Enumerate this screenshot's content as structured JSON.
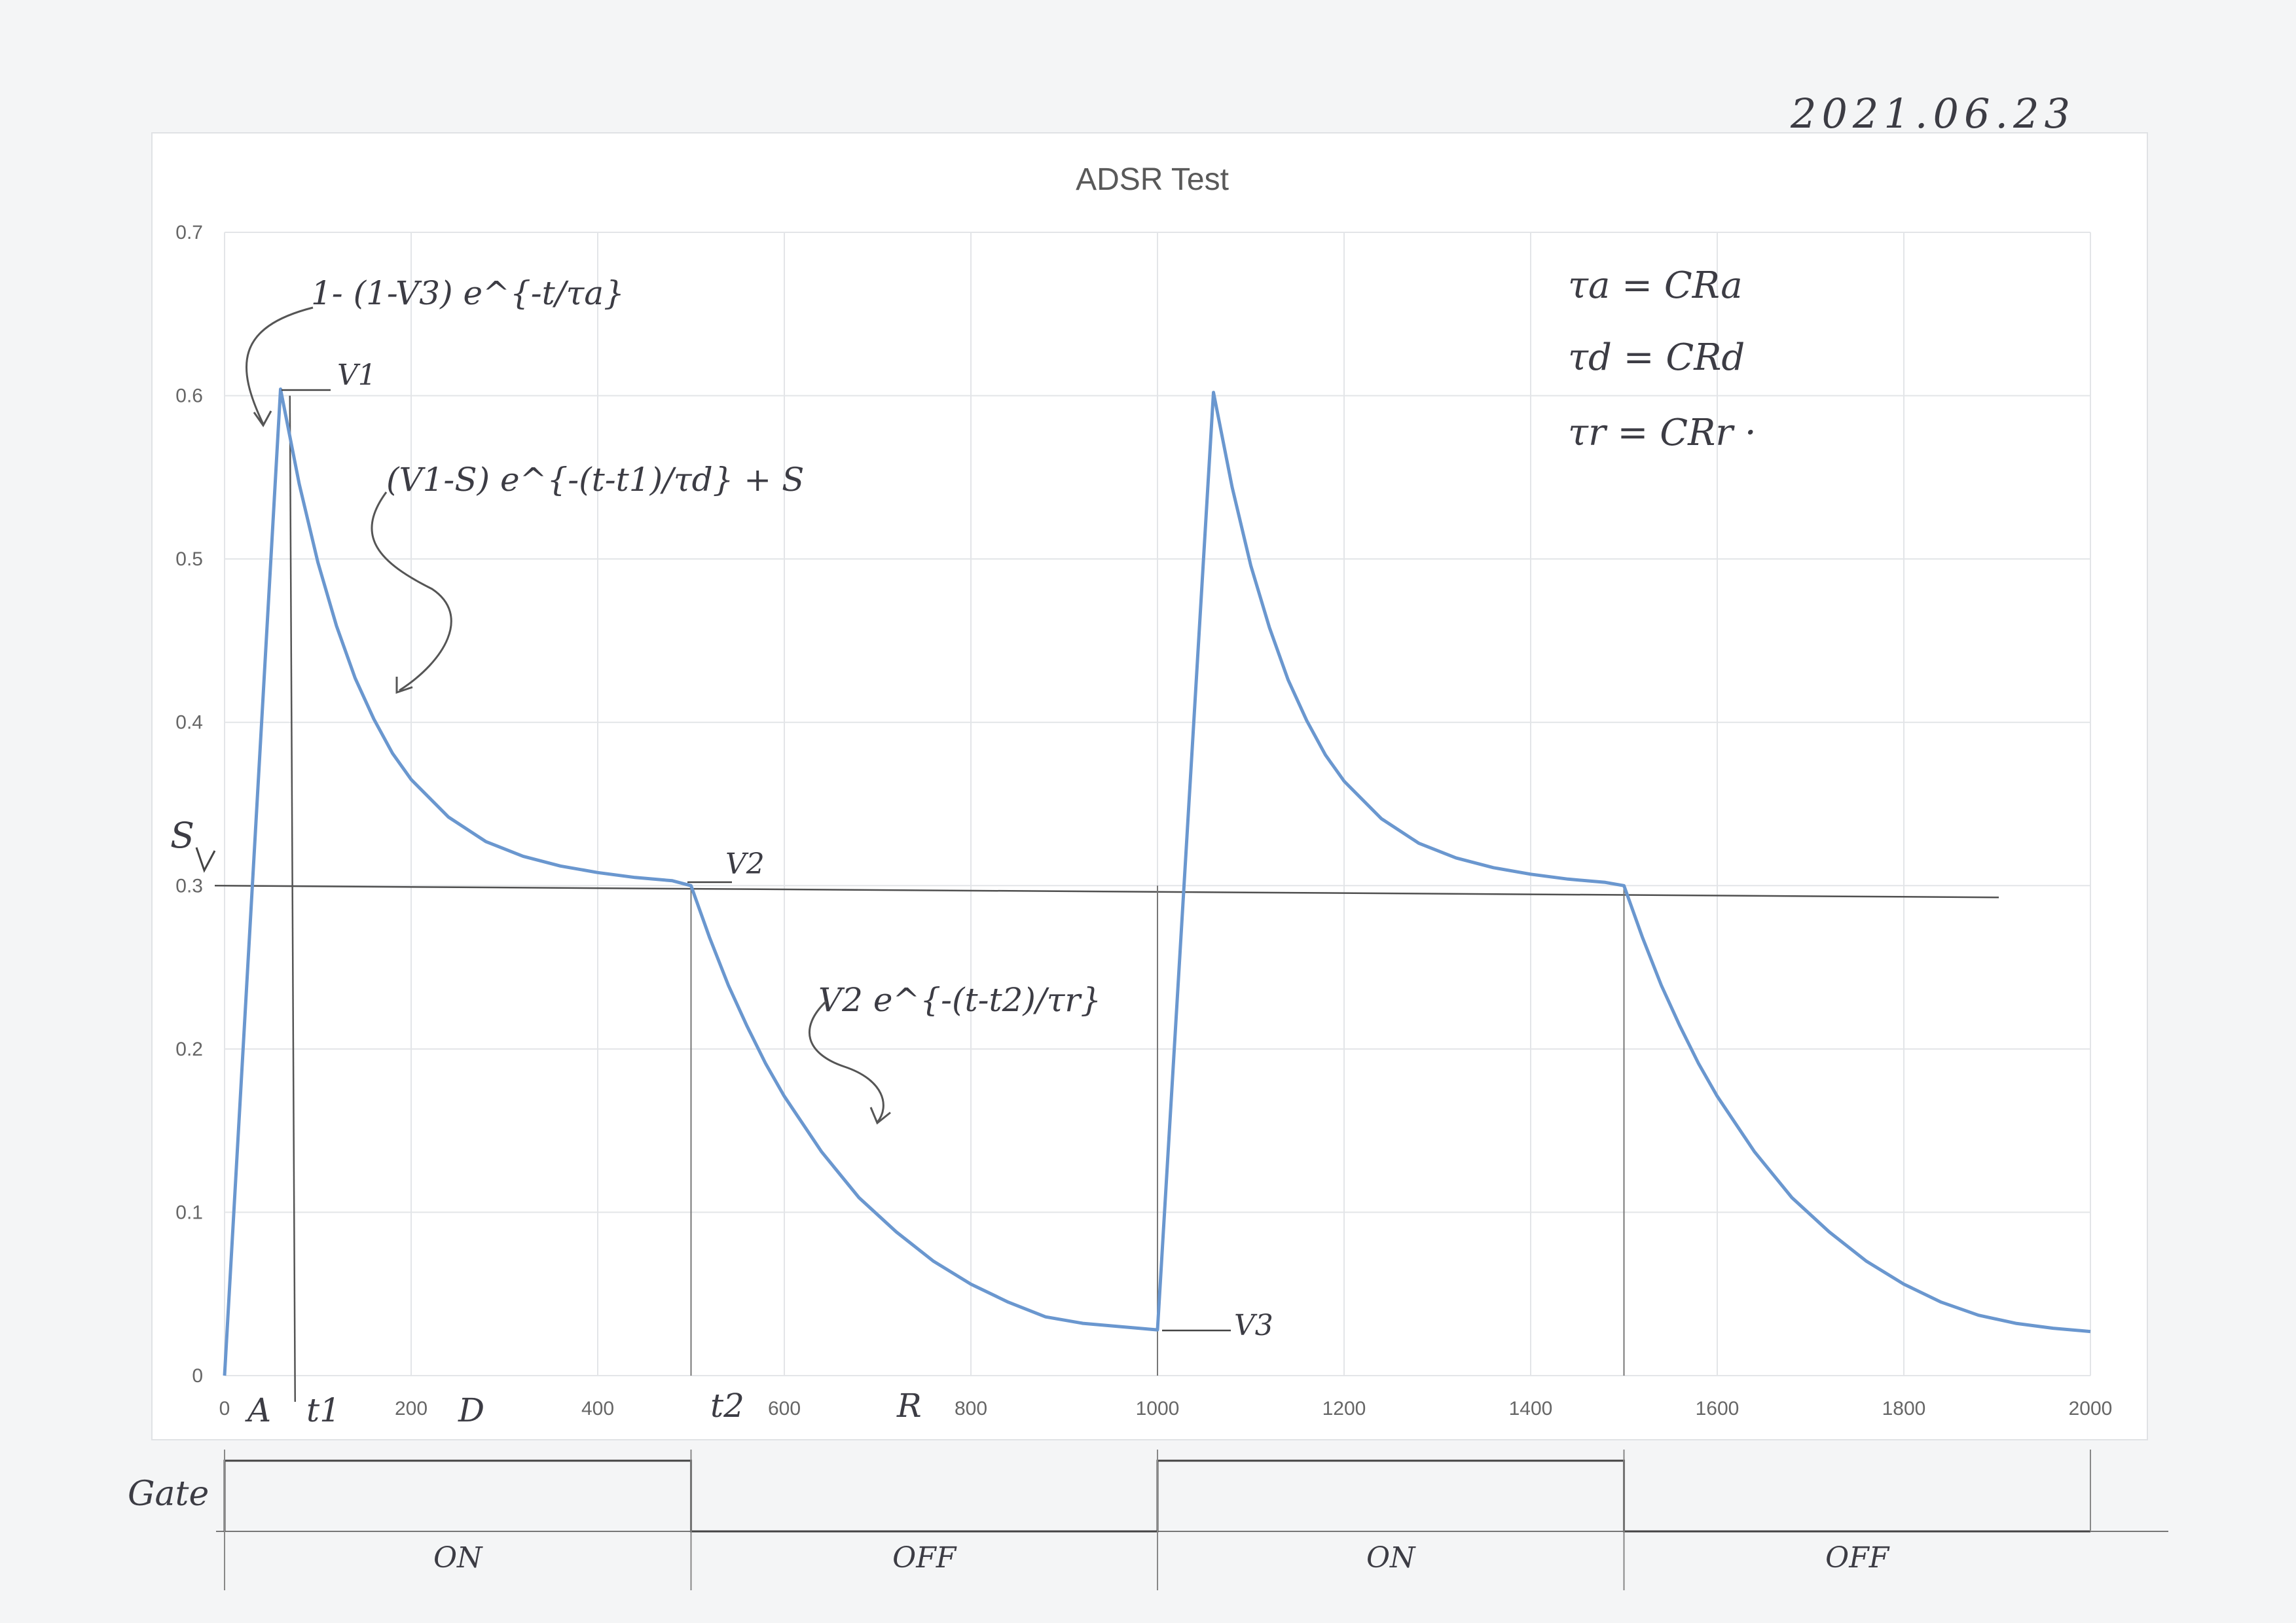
{
  "date_note": "2021.06.23",
  "chart_data": {
    "type": "line",
    "title": "ADSR Test",
    "xlim": [
      0,
      2000
    ],
    "ylim": [
      0,
      0.7
    ],
    "xticks": [
      "0",
      "200",
      "400",
      "600",
      "800",
      "1000",
      "1200",
      "1400",
      "1600",
      "1800",
      "2000"
    ],
    "yticks": [
      "0",
      "0.1",
      "0.2",
      "0.3",
      "0.4",
      "0.5",
      "0.6",
      "0.7"
    ],
    "grid": true,
    "series_color": "#6a97cf",
    "series": [
      {
        "x": [
          0,
          60,
          80,
          100,
          120,
          140,
          160,
          180,
          200,
          240,
          280,
          320,
          360,
          400,
          440,
          480,
          500,
          520,
          540,
          560,
          580,
          600,
          640,
          680,
          720,
          760,
          800,
          840,
          880,
          920,
          960,
          1000,
          1060,
          1080,
          1100,
          1120,
          1140,
          1160,
          1180,
          1200,
          1240,
          1280,
          1320,
          1360,
          1400,
          1440,
          1480,
          1500,
          1520,
          1540,
          1560,
          1580,
          1600,
          1640,
          1680,
          1720,
          1760,
          1800,
          1840,
          1880,
          1920,
          1960,
          2000
        ],
        "y": [
          0,
          0.604,
          0.546,
          0.498,
          0.459,
          0.427,
          0.402,
          0.381,
          0.365,
          0.342,
          0.327,
          0.318,
          0.312,
          0.308,
          0.305,
          0.303,
          0.3,
          0.268,
          0.239,
          0.214,
          0.191,
          0.171,
          0.137,
          0.109,
          0.088,
          0.07,
          0.056,
          0.045,
          0.036,
          0.032,
          0.03,
          0.028,
          0.602,
          0.544,
          0.496,
          0.458,
          0.426,
          0.401,
          0.38,
          0.364,
          0.341,
          0.326,
          0.317,
          0.311,
          0.307,
          0.304,
          0.302,
          0.3,
          0.268,
          0.239,
          0.214,
          0.191,
          0.171,
          0.137,
          0.109,
          0.088,
          0.07,
          0.056,
          0.045,
          0.037,
          0.032,
          0.029,
          0.027
        ]
      }
    ],
    "sustain_level": 0.3,
    "markers": {
      "t1": 70,
      "t2": 500,
      "t3": 1000,
      "t4": 1500
    }
  },
  "annotations": {
    "attack_formula": "1- (1-V3) e^{-t/τa}",
    "decay_formula": "(V1-S) e^{-(t-t1)/τd} + S",
    "release_formula": "V2 e^{-(t-t2)/τr}",
    "tau_a": "τa = CRa",
    "tau_d": "τd = CRd",
    "tau_r": "τr = CRr ·",
    "v1": "V1",
    "v2": "V2",
    "v3": "V3",
    "s": "S",
    "a": "A",
    "t1": "t1",
    "d": "D",
    "t2": "t2",
    "r": "R"
  },
  "gate": {
    "label": "Gate",
    "segments": [
      {
        "start": 0,
        "end": 500,
        "state": "ON",
        "high": true
      },
      {
        "start": 500,
        "end": 1000,
        "state": "OFF",
        "high": false
      },
      {
        "start": 1000,
        "end": 1500,
        "state": "ON",
        "high": true
      },
      {
        "start": 1500,
        "end": 2000,
        "state": "OFF",
        "high": false
      }
    ]
  }
}
